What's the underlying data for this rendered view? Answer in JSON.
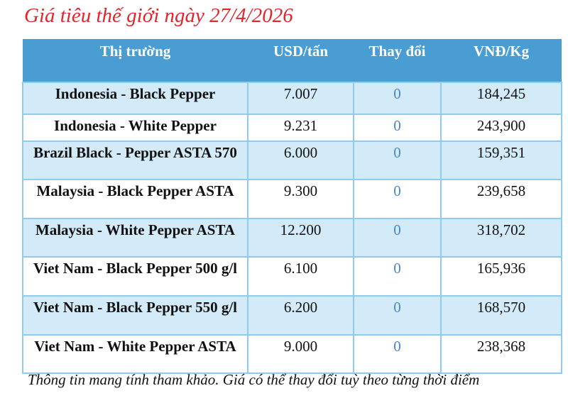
{
  "title": "Giá tiêu thế giới ngày 27/4/2026",
  "columns": [
    "Thị trường",
    "USD/tấn",
    "Thay đổi",
    "VNĐ/Kg"
  ],
  "rows": [
    {
      "market": "Indonesia - Black Pepper",
      "usd": "7.007",
      "change": "0",
      "vnd": "184,245"
    },
    {
      "market": "Indonesia - White Pepper",
      "usd": "9.231",
      "change": "0",
      "vnd": "243,900"
    },
    {
      "market": "Brazil Black - Pepper ASTA 570",
      "usd": "6.000",
      "change": "0",
      "vnd": "159,351"
    },
    {
      "market": "Malaysia - Black Pepper ASTA",
      "usd": "9.300",
      "change": "0",
      "vnd": "239,658"
    },
    {
      "market": "Malaysia - White Pepper ASTA",
      "usd": "12.200",
      "change": "0",
      "vnd": "318,702"
    },
    {
      "market": "Viet Nam - Black Pepper 500 g/l",
      "usd": "6.100",
      "change": "0",
      "vnd": "165,936"
    },
    {
      "market": "Viet Nam - Black Pepper 550 g/l",
      "usd": "6.200",
      "change": "0",
      "vnd": "168,570"
    },
    {
      "market": "Viet Nam - White Pepper ASTA",
      "usd": "9.000",
      "change": "0",
      "vnd": "238,368"
    }
  ],
  "note": "Thông tin mang tính tham khảo. Giá có thể thay đổi tuỳ theo từng thời điểm",
  "colors": {
    "title": "#e0262a",
    "header": "#4a9dd3",
    "row_alt": "#d3ebf8",
    "change": "#4a86c8"
  }
}
